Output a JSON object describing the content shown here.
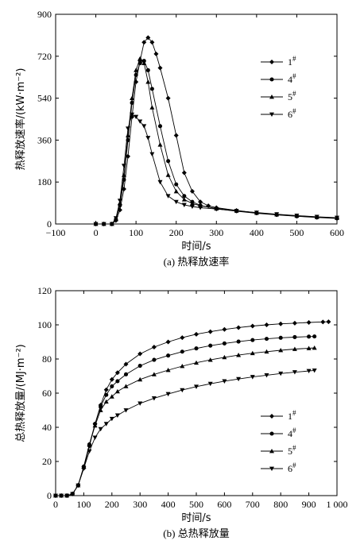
{
  "chart_data": [
    {
      "type": "line",
      "caption": "(a) 热释放速率",
      "xlabel": "时间/s",
      "ylabel": "热释放速率/(kW·m⁻²)",
      "xlim": [
        -100,
        600
      ],
      "ylim": [
        0,
        900
      ],
      "xticks": [
        "−100",
        "0",
        "100",
        "200",
        "300",
        "400",
        "500",
        "600"
      ],
      "yticks": [
        "0",
        "180",
        "360",
        "540",
        "720",
        "900"
      ],
      "xtick_values": [
        -100,
        0,
        100,
        200,
        300,
        400,
        500,
        600
      ],
      "ytick_values": [
        0,
        180,
        360,
        540,
        720,
        900
      ],
      "legend_position": "right",
      "series": [
        {
          "name": "1#",
          "marker": "diamond",
          "x": [
            0,
            20,
            40,
            50,
            60,
            70,
            80,
            90,
            100,
            110,
            120,
            130,
            140,
            150,
            160,
            180,
            200,
            220,
            240,
            260,
            280,
            300,
            350,
            400,
            450,
            500,
            550,
            600
          ],
          "y": [
            0,
            0,
            0,
            15,
            60,
            150,
            290,
            460,
            610,
            700,
            780,
            800,
            780,
            730,
            670,
            540,
            380,
            220,
            140,
            95,
            78,
            70,
            58,
            48,
            40,
            34,
            29,
            25
          ]
        },
        {
          "name": "4#",
          "marker": "circle",
          "x": [
            0,
            20,
            40,
            50,
            60,
            70,
            80,
            90,
            100,
            110,
            120,
            130,
            140,
            160,
            180,
            200,
            220,
            240,
            260,
            300,
            350,
            400,
            450,
            500,
            550,
            600
          ],
          "y": [
            0,
            0,
            0,
            20,
            80,
            190,
            360,
            520,
            640,
            690,
            700,
            660,
            580,
            420,
            270,
            170,
            120,
            95,
            80,
            65,
            55,
            46,
            39,
            33,
            28,
            24
          ]
        },
        {
          "name": "5#",
          "marker": "triangle-up",
          "x": [
            0,
            20,
            40,
            50,
            60,
            70,
            80,
            90,
            100,
            110,
            120,
            130,
            140,
            160,
            180,
            200,
            220,
            240,
            260,
            300,
            350,
            400,
            450,
            500,
            550,
            600
          ],
          "y": [
            0,
            0,
            0,
            20,
            90,
            210,
            380,
            540,
            660,
            710,
            690,
            610,
            500,
            340,
            210,
            140,
            105,
            88,
            78,
            66,
            57,
            48,
            41,
            35,
            30,
            26
          ]
        },
        {
          "name": "6#",
          "marker": "triangle-down",
          "x": [
            0,
            20,
            40,
            50,
            60,
            70,
            80,
            90,
            100,
            110,
            120,
            130,
            140,
            160,
            180,
            200,
            220,
            240,
            260,
            300,
            350,
            400,
            450,
            500,
            550,
            600
          ],
          "y": [
            0,
            0,
            0,
            25,
            100,
            250,
            410,
            470,
            460,
            440,
            420,
            370,
            300,
            180,
            120,
            95,
            82,
            75,
            70,
            64,
            56,
            49,
            42,
            36,
            31,
            27
          ]
        }
      ]
    },
    {
      "type": "line",
      "caption": "(b) 总热释放量",
      "xlabel": "时间/s",
      "ylabel": "总热释放量/(MJ·m⁻²)",
      "xlim": [
        0,
        1000
      ],
      "ylim": [
        0,
        120
      ],
      "xticks": [
        "0",
        "100",
        "200",
        "300",
        "400",
        "500",
        "600",
        "700",
        "800",
        "900",
        "1 000"
      ],
      "yticks": [
        "0",
        "20",
        "40",
        "60",
        "80",
        "100",
        "120"
      ],
      "xtick_values": [
        0,
        100,
        200,
        300,
        400,
        500,
        600,
        700,
        800,
        900,
        1000
      ],
      "ytick_values": [
        0,
        20,
        40,
        60,
        80,
        100,
        120
      ],
      "legend_position": "center-right",
      "series": [
        {
          "name": "1#",
          "marker": "diamond",
          "x": [
            0,
            20,
            40,
            60,
            80,
            100,
            120,
            140,
            160,
            180,
            200,
            220,
            250,
            300,
            350,
            400,
            450,
            500,
            550,
            600,
            650,
            700,
            750,
            800,
            850,
            900,
            950,
            970
          ],
          "y": [
            0,
            0,
            0,
            1,
            6,
            16,
            29,
            42,
            53,
            62,
            68,
            72,
            77,
            83,
            87,
            90,
            92.5,
            94.5,
            96,
            97.3,
            98.4,
            99.3,
            100,
            100.6,
            101,
            101.4,
            101.7,
            101.8
          ]
        },
        {
          "name": "4#",
          "marker": "circle",
          "x": [
            0,
            20,
            40,
            60,
            80,
            100,
            120,
            140,
            160,
            180,
            200,
            220,
            250,
            300,
            350,
            400,
            450,
            500,
            550,
            600,
            650,
            700,
            750,
            800,
            850,
            900,
            920
          ],
          "y": [
            0,
            0,
            0,
            1,
            6,
            17,
            30,
            42,
            52,
            59,
            64,
            67,
            71,
            76,
            79.5,
            82,
            84.3,
            86.2,
            87.8,
            89.1,
            90.2,
            91.1,
            91.8,
            92.4,
            92.8,
            93.1,
            93.2
          ]
        },
        {
          "name": "5#",
          "marker": "triangle-up",
          "x": [
            0,
            20,
            40,
            60,
            80,
            100,
            120,
            140,
            160,
            180,
            200,
            220,
            250,
            300,
            350,
            400,
            450,
            500,
            550,
            600,
            650,
            700,
            750,
            800,
            850,
            900,
            920
          ],
          "y": [
            0,
            0,
            0,
            1,
            6,
            17,
            30,
            41,
            50,
            55,
            58,
            61,
            64,
            68,
            71,
            73.5,
            75.8,
            77.8,
            79.5,
            81,
            82.3,
            83.4,
            84.3,
            85.1,
            85.8,
            86.3,
            86.5
          ]
        },
        {
          "name": "6#",
          "marker": "triangle-down",
          "x": [
            0,
            20,
            40,
            60,
            80,
            100,
            120,
            140,
            160,
            180,
            200,
            220,
            250,
            300,
            350,
            400,
            450,
            500,
            550,
            600,
            650,
            700,
            750,
            800,
            850,
            900,
            920
          ],
          "y": [
            0,
            0,
            0,
            1,
            6,
            16,
            26,
            34,
            39,
            42,
            45,
            47,
            50,
            54,
            57,
            59.5,
            61.8,
            63.8,
            65.5,
            67,
            68.3,
            69.5,
            70.5,
            71.5,
            72.3,
            73,
            73.3
          ]
        }
      ]
    }
  ]
}
